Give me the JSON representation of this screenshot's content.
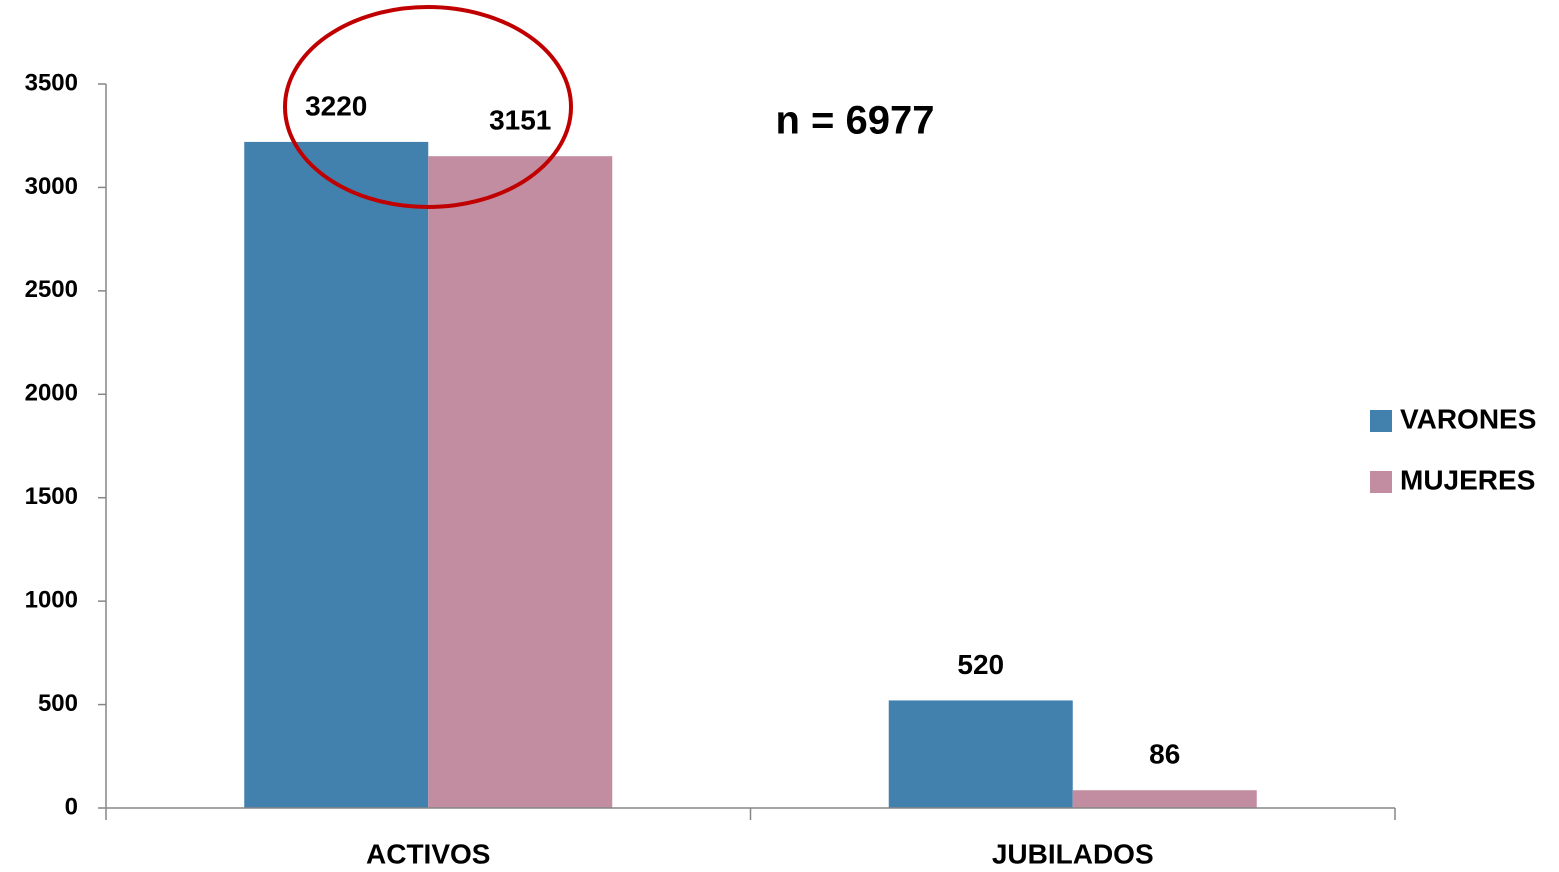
{
  "chart_data": {
    "type": "bar",
    "categories": [
      "ACTIVOS",
      "JUBILADOS"
    ],
    "series": [
      {
        "name": "VARONES",
        "color": "#4281ae",
        "values": [
          3220,
          520
        ]
      },
      {
        "name": "MUJERES",
        "color": "#c28da1",
        "values": [
          3151,
          86
        ]
      }
    ],
    "ylim": [
      0,
      3500
    ],
    "yticks": [
      0,
      500,
      1000,
      1500,
      2000,
      2500,
      3000,
      3500
    ],
    "annotation": "n = 6977",
    "legend": "right"
  }
}
